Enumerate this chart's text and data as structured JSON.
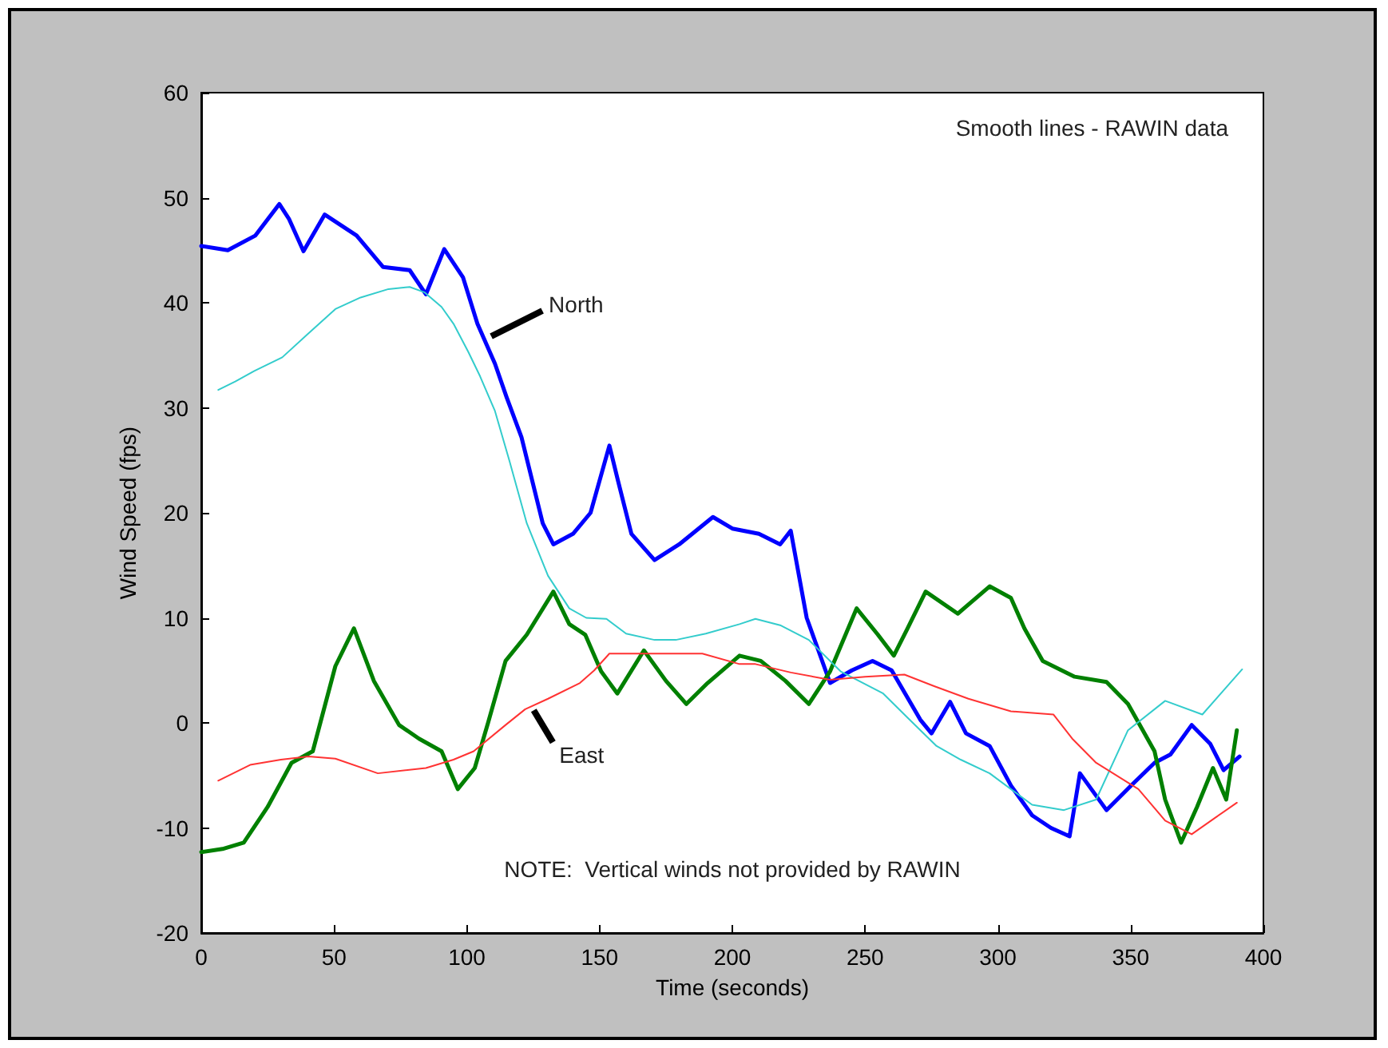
{
  "chart_data": {
    "type": "line",
    "xlabel": "Time (seconds)",
    "ylabel": "Wind Speed (fps)",
    "xlim": [
      0,
      400
    ],
    "ylim": [
      -20,
      60
    ],
    "xticks": [
      0,
      50,
      100,
      150,
      200,
      250,
      300,
      350,
      400
    ],
    "yticks": [
      -20,
      -10,
      0,
      10,
      20,
      30,
      40,
      50,
      60
    ],
    "grid": false,
    "marker": "none",
    "line_style": "solid",
    "annotations": [
      "Smooth lines - RAWIN data",
      "NOTE:  Vertical winds not provided by RAWIN",
      {
        "text": "North",
        "x": 108,
        "y": 36.5
      },
      {
        "text": "East",
        "x": 124,
        "y": 1.5
      }
    ],
    "series": [
      {
        "color": "#0000ff",
        "x": [
          0,
          10,
          20.4,
          29.4,
          33,
          38.5,
          46.5,
          58.5,
          68.5,
          78.5,
          84.6,
          91.5,
          98.6,
          104,
          110.6,
          115,
          120.6,
          128.6,
          132.6,
          140,
          146.6,
          153.7,
          157,
          162,
          170.7,
          180,
          192.7,
          200,
          210,
          218,
          222,
          228,
          236.8,
          245,
          252.8,
          260,
          270.8,
          275,
          282,
          288,
          296.9,
          305,
          312.9,
          320,
          327,
          330.9,
          340.9,
          350,
          359,
          365,
          373,
          380,
          385,
          391
        ],
        "values": [
          45.4,
          45,
          46.4,
          49.4,
          48,
          44.9,
          48.4,
          46.4,
          43.4,
          43.1,
          40.8,
          45.1,
          42.4,
          38,
          34.2,
          31,
          27.2,
          19,
          17,
          18,
          20,
          26.4,
          23,
          18,
          15.5,
          17,
          19.6,
          18.5,
          18,
          17,
          18.3,
          10,
          3.8,
          5,
          5.9,
          5,
          0.3,
          -1,
          2,
          -1,
          -2.2,
          -6,
          -8.8,
          -10,
          -10.8,
          -4.8,
          -8.3,
          -6,
          -3.8,
          -3,
          -0.2,
          -2,
          -4.5,
          -3.2
        ]
      },
      {
        "color": "#008000",
        "x": [
          0,
          8,
          16,
          25,
          34,
          42,
          50.5,
          57.5,
          65,
          74.5,
          82,
          90.5,
          96.6,
          103,
          108,
          114.6,
          122.6,
          132.6,
          138.6,
          144.6,
          150.6,
          156.7,
          166.7,
          175,
          182.7,
          190.7,
          202.7,
          210.7,
          220,
          228.8,
          236.8,
          246.8,
          254.8,
          260.8,
          266,
          272.8,
          284.9,
          296.9,
          304.9,
          310,
          316.9,
          328.9,
          340.9,
          349,
          359,
          363,
          369,
          375,
          381,
          386,
          390
        ],
        "values": [
          -12.3,
          -12,
          -11.4,
          -8,
          -3.8,
          -2.7,
          5.4,
          9,
          4,
          -0.2,
          -1.5,
          -2.7,
          -6.3,
          -4.3,
          0,
          5.9,
          8.4,
          12.5,
          9.4,
          8.4,
          4.9,
          2.8,
          6.9,
          4,
          1.8,
          3.8,
          6.4,
          5.9,
          4,
          1.8,
          4.9,
          10.9,
          8.4,
          6.4,
          9,
          12.5,
          10.4,
          13,
          11.9,
          9,
          5.9,
          4.4,
          3.9,
          1.8,
          -2.7,
          -7.3,
          -11.4,
          -8,
          -4.3,
          -7.3,
          -0.7
        ]
      },
      {
        "color": "#33cccc",
        "x": [
          6.4,
          12.8,
          20,
          30.5,
          40,
          50.5,
          60,
          70.5,
          78.5,
          84,
          90.5,
          95,
          100.6,
          105,
          110.6,
          116,
          122.6,
          130.6,
          138.6,
          145,
          152.6,
          160,
          170.7,
          178.7,
          190,
          202.7,
          208.7,
          218,
          228.8,
          240.8,
          256.8,
          266,
          276.9,
          286,
          296.9,
          312.9,
          324.9,
          337,
          349,
          363,
          377,
          392
        ],
        "values": [
          31.7,
          32.5,
          33.5,
          34.8,
          37,
          39.4,
          40.5,
          41.3,
          41.5,
          41,
          39.6,
          38,
          35.3,
          33,
          29.7,
          25,
          19,
          14,
          10.9,
          10,
          9.9,
          8.5,
          7.9,
          7.9,
          8.5,
          9.4,
          9.9,
          9.3,
          7.9,
          4.9,
          2.8,
          0.5,
          -2.2,
          -3.5,
          -4.8,
          -7.8,
          -8.3,
          -7.3,
          -0.7,
          2.1,
          0.8,
          5.1
        ]
      },
      {
        "color": "#ff3333",
        "x": [
          6.4,
          18.4,
          30,
          40.4,
          50.5,
          66.5,
          84.6,
          95,
          102.6,
          114.6,
          122,
          130.6,
          142.6,
          148,
          153.7,
          170,
          188.7,
          202.7,
          208.7,
          222,
          236.8,
          250,
          264.8,
          276,
          288.9,
          304.9,
          320.9,
          328,
          337,
          352.9,
          363,
          373,
          382,
          390
        ],
        "values": [
          -5.5,
          -4,
          -3.5,
          -3.2,
          -3.4,
          -4.8,
          -4.3,
          -3.5,
          -2.7,
          -0.2,
          1.3,
          2.3,
          3.8,
          5,
          6.6,
          6.6,
          6.6,
          5.6,
          5.6,
          4.8,
          4.1,
          4.4,
          4.6,
          3.5,
          2.3,
          1.1,
          0.8,
          -1.5,
          -3.8,
          -6.3,
          -9.3,
          -10.6,
          -9,
          -7.6
        ]
      }
    ]
  }
}
